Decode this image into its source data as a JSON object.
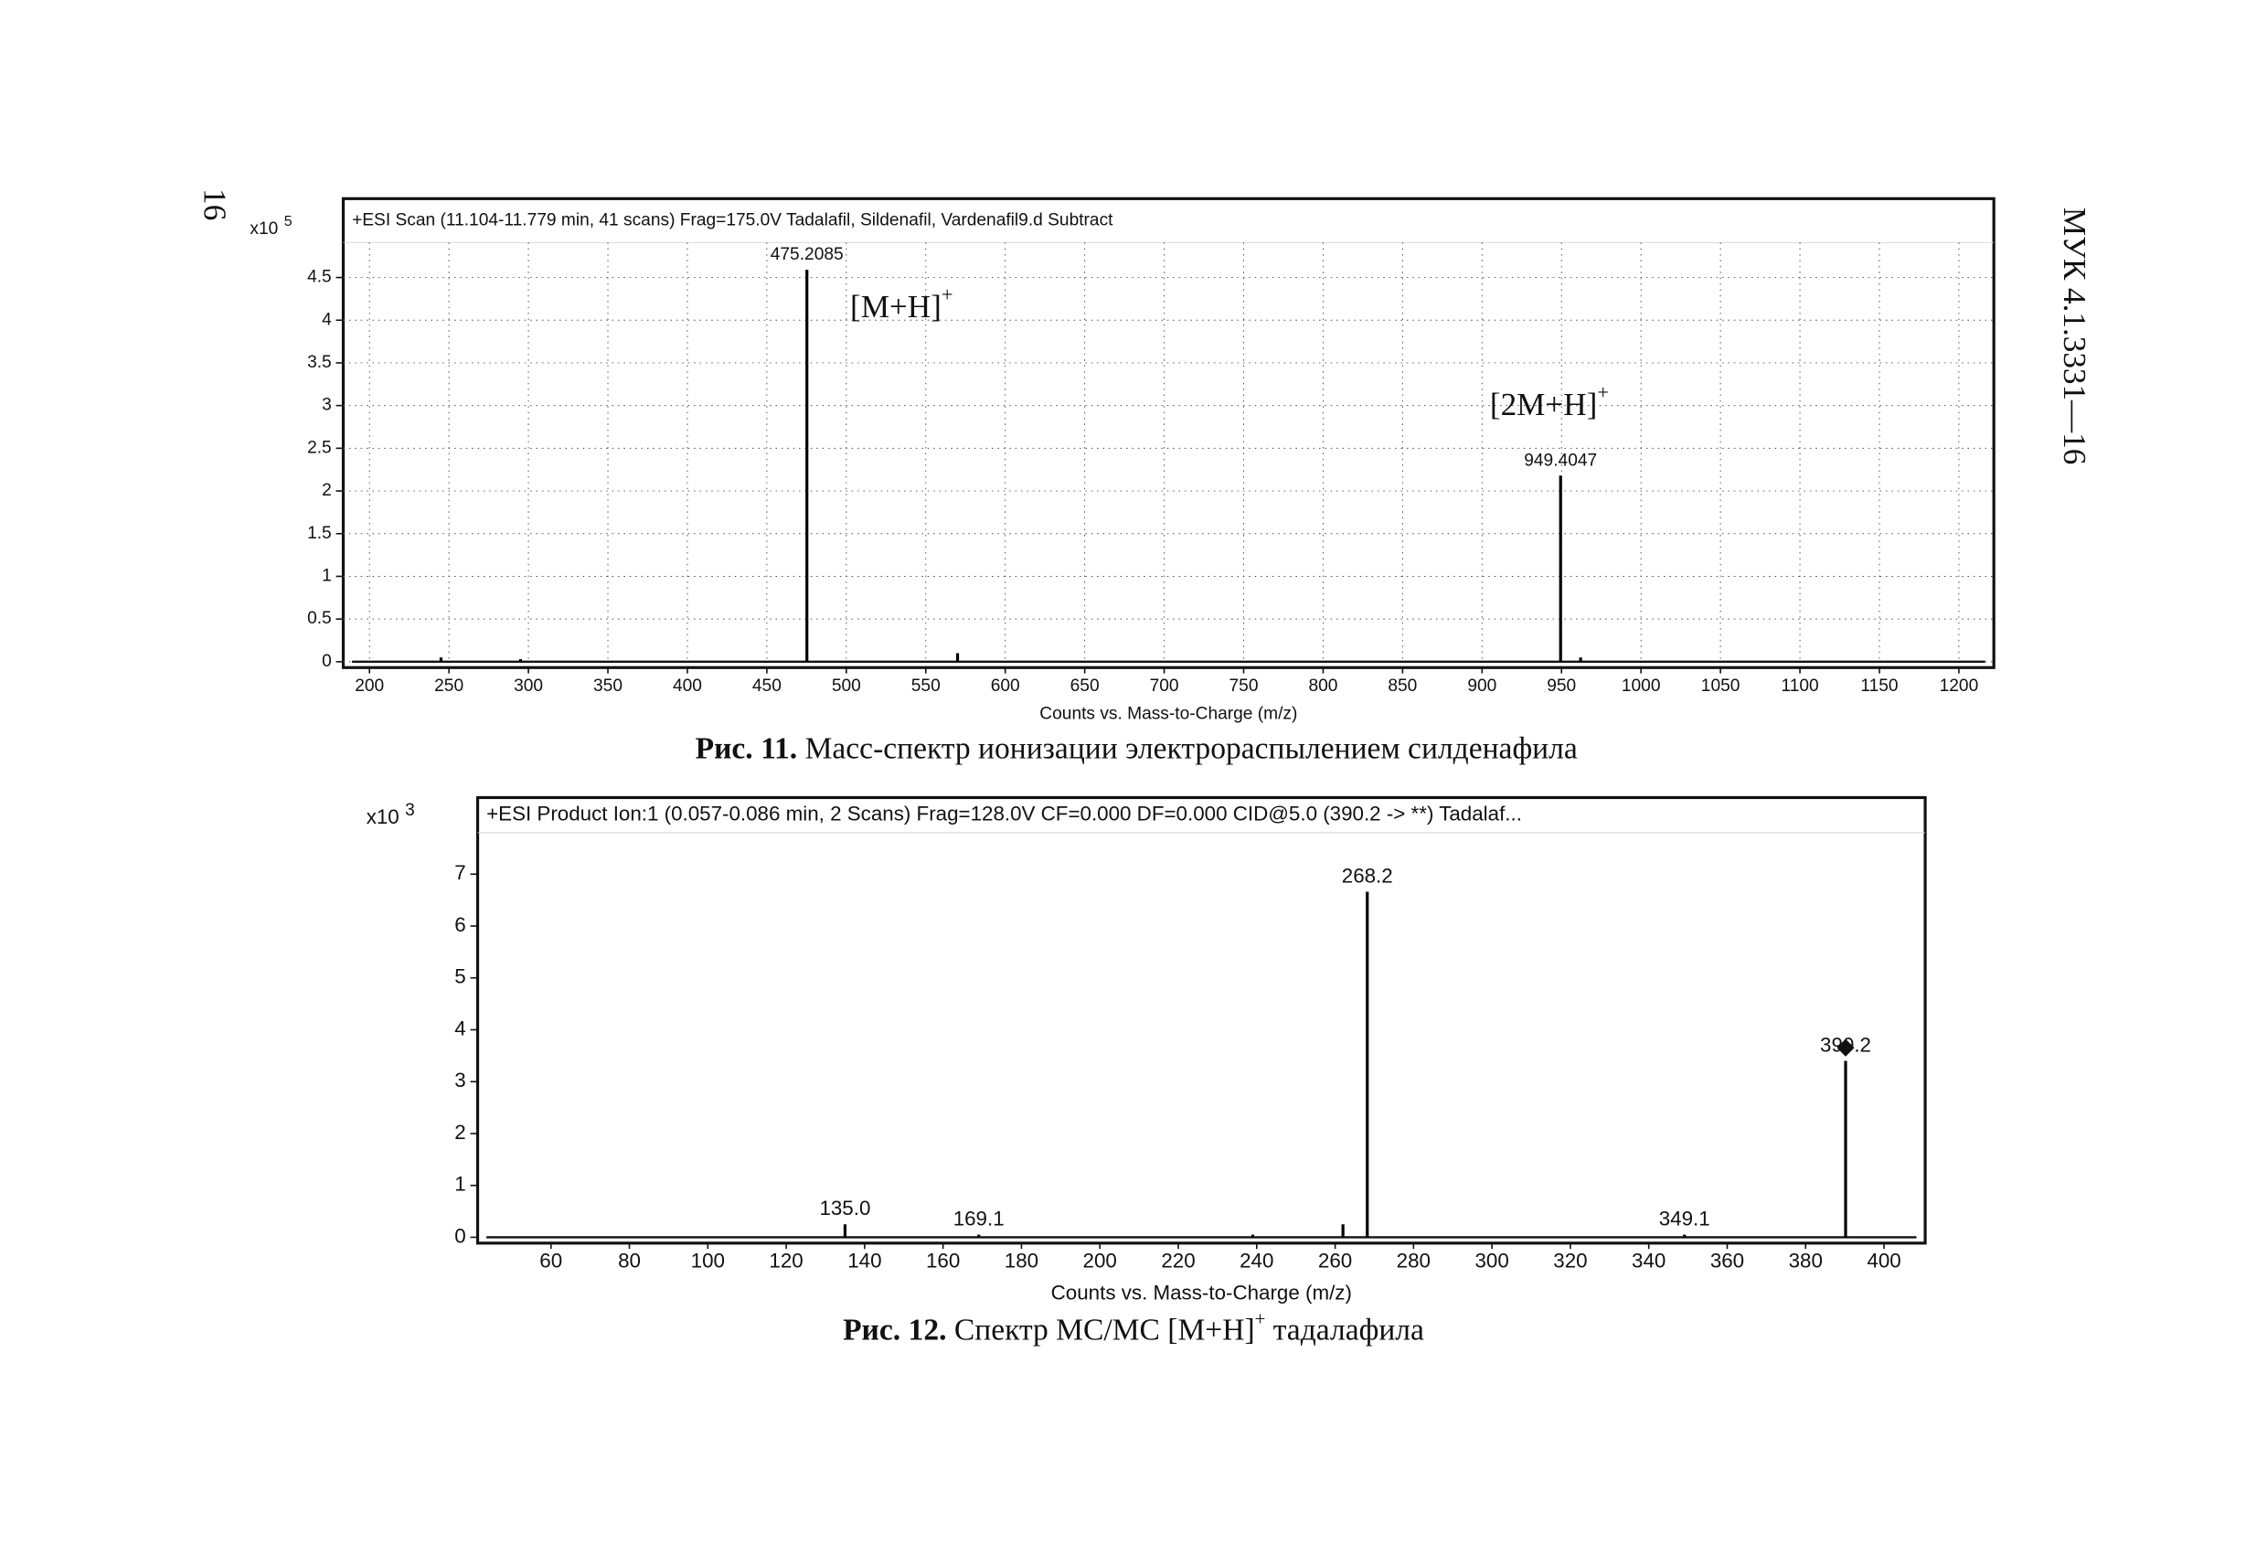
{
  "page_number": "16",
  "document_code": "МУК 4.1.3331—16",
  "captions": [
    {
      "label": "Рис. 11.",
      "text": "Масс-спектр ионизации электрораспылением силденафила"
    },
    {
      "label": "Рис. 12.",
      "text": "Спектр МС/МС [M+H]",
      "sup": "+",
      "tail": "тадалафила"
    }
  ],
  "chart_data": [
    {
      "type": "bar",
      "title": "+ESI Scan (11.104-11.779 min, 41 scans) Frag=175.0V Tadalafil, Sildenafil, Vardenafil9.d  Subtract",
      "y_multiplier": "x10",
      "y_exponent": "5",
      "x_label": "Counts vs. Mass-to-Charge (m/z)",
      "x": [
        245,
        295,
        475.2085,
        570,
        949.4047,
        962
      ],
      "values": [
        0.05,
        0.03,
        4.59,
        0.1,
        2.18,
        0.05
      ],
      "x_labels": [
        null,
        null,
        "475.2085",
        null,
        "949.4047",
        null
      ],
      "color": "#000000",
      "xlim": [
        183.5,
        1222
      ],
      "ylim": [
        0,
        4.91
      ],
      "xticks": [
        200,
        250,
        300,
        350,
        400,
        450,
        500,
        550,
        600,
        650,
        700,
        750,
        800,
        850,
        900,
        950,
        1000,
        1050,
        1100,
        1150,
        1200
      ],
      "yticks": [
        0,
        0.5,
        1,
        1.5,
        2,
        2.5,
        3,
        3.5,
        4,
        4.5
      ],
      "grid": true,
      "annotations": [
        {
          "text": "[M+H]",
          "sup": "+"
        },
        {
          "text": "[2M+H]",
          "sup": "+"
        }
      ]
    },
    {
      "type": "bar",
      "title": "+ESI Product Ion:1 (0.057-0.086 min, 2 Scans) Frag=128.0V CF=0.000 DF=0.000 CID@5.0 (390.2 -> **) Tadalaf...",
      "y_multiplier": "x10",
      "y_exponent": "3",
      "x_label": "Counts vs. Mass-to-Charge (m/z)",
      "x": [
        135.0,
        169.1,
        239,
        262,
        268.2,
        349.1,
        390.2
      ],
      "values": [
        0.25,
        0.05,
        0.05,
        0.25,
        6.66,
        0.05,
        3.4
      ],
      "x_labels": [
        "135.0",
        "169.1",
        null,
        null,
        "268.2",
        "349.1",
        "390.2"
      ],
      "color": "#000000",
      "xlim": [
        41.3,
        410.5
      ],
      "ylim": [
        0,
        7.8
      ],
      "xticks": [
        60,
        80,
        100,
        120,
        140,
        160,
        180,
        200,
        220,
        240,
        260,
        280,
        300,
        320,
        340,
        360,
        380,
        400
      ],
      "yticks": [
        0,
        1,
        2,
        3,
        4,
        5,
        6,
        7
      ],
      "grid": false,
      "annotations": []
    }
  ]
}
